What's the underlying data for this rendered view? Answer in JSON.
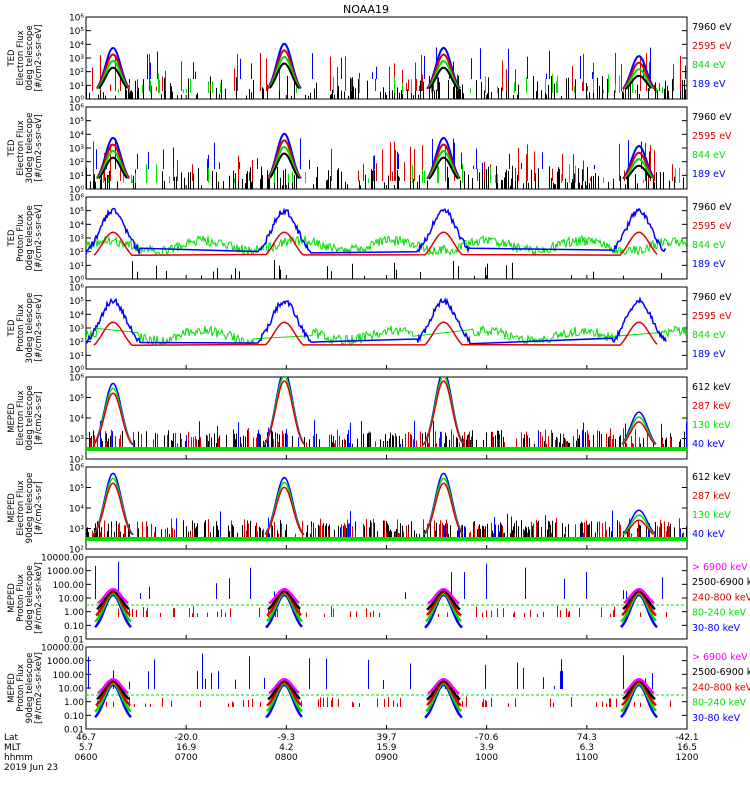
{
  "title": "NOAA19",
  "colors": {
    "black": "#000000",
    "red": "#e00000",
    "green": "#00e000",
    "blue": "#0000ff",
    "magenta": "#ff00ff"
  },
  "panels": [
    {
      "ylabel": [
        "TED",
        "Electron Flux",
        "0deg telescope",
        "[#/cm2-s-sr-eV]"
      ],
      "ticks": [
        "10⁰",
        "10¹",
        "10²",
        "10³",
        "10⁴",
        "10⁵",
        "10⁶"
      ],
      "legend": [
        {
          "text": "7960 eV",
          "color": "black"
        },
        {
          "text": "2595 eV",
          "color": "red"
        },
        {
          "text": "844 eV",
          "color": "green"
        },
        {
          "text": "189 eV",
          "color": "blue"
        }
      ]
    },
    {
      "ylabel": [
        "TED",
        "Electron Flux",
        "30deg telescope",
        "[#/cm2-s-sr-eV]"
      ],
      "ticks": [
        "10⁰",
        "10¹",
        "10²",
        "10³",
        "10⁴",
        "10⁵",
        "10⁶"
      ],
      "legend": [
        {
          "text": "7960 eV",
          "color": "black"
        },
        {
          "text": "2595 eV",
          "color": "red"
        },
        {
          "text": "844 eV",
          "color": "green"
        },
        {
          "text": "189 eV",
          "color": "blue"
        }
      ]
    },
    {
      "ylabel": [
        "TED",
        "Proton Flux",
        "0deg telescope",
        "[#/cm2-s-sr-eV]"
      ],
      "ticks": [
        "10⁰",
        "10¹",
        "10²",
        "10³",
        "10⁴",
        "10⁵",
        "10⁶"
      ],
      "legend": [
        {
          "text": "7960 eV",
          "color": "black"
        },
        {
          "text": "2595 eV",
          "color": "red"
        },
        {
          "text": "844 eV",
          "color": "green"
        },
        {
          "text": "189 eV",
          "color": "blue"
        }
      ]
    },
    {
      "ylabel": [
        "TED",
        "Proton Flux",
        "30deg telescope",
        "[#/cm2-s-sr-eV]"
      ],
      "ticks": [
        "10⁰",
        "10¹",
        "10²",
        "10³",
        "10⁴",
        "10⁵",
        "10⁶"
      ],
      "legend": [
        {
          "text": "7960 eV",
          "color": "black"
        },
        {
          "text": "2595 eV",
          "color": "red"
        },
        {
          "text": "844 eV",
          "color": "green"
        },
        {
          "text": "189 eV",
          "color": "blue"
        }
      ]
    },
    {
      "ylabel": [
        "MEPED",
        "Electron Flux",
        "0deg telescope",
        "[#/cm2-s-sr]"
      ],
      "ticks": [
        "10²",
        "10³",
        "10⁴",
        "10⁵",
        "10⁶"
      ],
      "legend": [
        {
          "text": "612 keV",
          "color": "black"
        },
        {
          "text": "287 keV",
          "color": "red"
        },
        {
          "text": "130 keV",
          "color": "green"
        },
        {
          "text": "40 keV",
          "color": "blue"
        }
      ]
    },
    {
      "ylabel": [
        "MEPED",
        "Electron Flux",
        "90deg telescope",
        "[#/cm2-s-sr]"
      ],
      "ticks": [
        "10²",
        "10³",
        "10⁴",
        "10⁵",
        "10⁶"
      ],
      "legend": [
        {
          "text": "612 keV",
          "color": "black"
        },
        {
          "text": "287 keV",
          "color": "red"
        },
        {
          "text": "130 keV",
          "color": "green"
        },
        {
          "text": "40 keV",
          "color": "blue"
        }
      ]
    },
    {
      "ylabel": [
        "MEPED",
        "Proton Flux",
        "0deg telescope",
        "[#/cm2-s-sr-keV]"
      ],
      "ticks": [
        "0.01",
        "0.10",
        "1.00",
        "10.00",
        "100.00",
        "1000.00",
        "10000.00"
      ],
      "legend": [
        {
          "text": "> 6900 keV",
          "color": "magenta"
        },
        {
          "text": "2500-6900 keV",
          "color": "black"
        },
        {
          "text": "240-800 keV",
          "color": "red"
        },
        {
          "text": "80-240 keV",
          "color": "green"
        },
        {
          "text": "30-80 keV",
          "color": "blue"
        }
      ]
    },
    {
      "ylabel": [
        "MEPED",
        "Proton Flux",
        "90deg telescope",
        "[#/cm2-s-sr-keV]"
      ],
      "ticks": [
        "0.01",
        "0.10",
        "1.00",
        "10.00",
        "100.00",
        "1000.00",
        "10000.00"
      ],
      "legend": [
        {
          "text": "> 6900 keV",
          "color": "magenta"
        },
        {
          "text": "2500-6900 keV",
          "color": "black"
        },
        {
          "text": "240-800 keV",
          "color": "red"
        },
        {
          "text": "80-240 keV",
          "color": "green"
        },
        {
          "text": "30-80 keV",
          "color": "blue"
        }
      ]
    }
  ],
  "xaxis": {
    "row_labels": [
      "Lat",
      "MLT",
      "hhmm"
    ],
    "date": "2019 Jun 23",
    "ticks": [
      {
        "lat": "46.7",
        "mlt": "5.7",
        "hhmm": "0600"
      },
      {
        "lat": "-20.0",
        "mlt": "16.9",
        "hhmm": "0700"
      },
      {
        "lat": "-9.3",
        "mlt": "4.2",
        "hhmm": "0800"
      },
      {
        "lat": "39.7",
        "mlt": "15.9",
        "hhmm": "0900"
      },
      {
        "lat": "-70.6",
        "mlt": "3.9",
        "hhmm": "1000"
      },
      {
        "lat": "74.3",
        "mlt": "6.3",
        "hhmm": "1100"
      },
      {
        "lat": "-42.1",
        "mlt": "16.5",
        "hhmm": "1200"
      }
    ]
  },
  "chart_data": {
    "type": "line",
    "title": "NOAA19",
    "x": [
      "0600",
      "0700",
      "0800",
      "0900",
      "1000",
      "1100",
      "1200"
    ],
    "xlabel": "hhmm",
    "log_scale": true,
    "panels": [
      {
        "ylabel": "TED Electron Flux 0deg telescope [#/cm2-s-sr-eV]",
        "ylim": [
          1,
          1000000
        ],
        "series": [
          {
            "name": "7960 eV",
            "color": "black"
          },
          {
            "name": "2595 eV",
            "color": "red"
          },
          {
            "name": "844 eV",
            "color": "green"
          },
          {
            "name": "189 eV",
            "color": "blue"
          }
        ]
      },
      {
        "ylabel": "TED Electron Flux 30deg telescope [#/cm2-s-sr-eV]",
        "ylim": [
          1,
          1000000
        ],
        "series": [
          {
            "name": "7960 eV",
            "color": "black"
          },
          {
            "name": "2595 eV",
            "color": "red"
          },
          {
            "name": "844 eV",
            "color": "green"
          },
          {
            "name": "189 eV",
            "color": "blue"
          }
        ]
      },
      {
        "ylabel": "TED Proton Flux 0deg telescope [#/cm2-s-sr-eV]",
        "ylim": [
          1,
          1000000
        ],
        "series": [
          {
            "name": "7960 eV",
            "color": "black"
          },
          {
            "name": "2595 eV",
            "color": "red"
          },
          {
            "name": "844 eV",
            "color": "green"
          },
          {
            "name": "189 eV",
            "color": "blue"
          }
        ]
      },
      {
        "ylabel": "TED Proton Flux 30deg telescope [#/cm2-s-sr-eV]",
        "ylim": [
          1,
          1000000
        ],
        "series": [
          {
            "name": "7960 eV",
            "color": "black"
          },
          {
            "name": "2595 eV",
            "color": "red"
          },
          {
            "name": "844 eV",
            "color": "green"
          },
          {
            "name": "189 eV",
            "color": "blue"
          }
        ]
      },
      {
        "ylabel": "MEPED Electron Flux 0deg telescope [#/cm2-s-sr]",
        "ylim": [
          100,
          1000000
        ],
        "series": [
          {
            "name": "612 keV",
            "color": "black"
          },
          {
            "name": "287 keV",
            "color": "red"
          },
          {
            "name": "130 keV",
            "color": "green"
          },
          {
            "name": "40 keV",
            "color": "blue"
          }
        ]
      },
      {
        "ylabel": "MEPED Electron Flux 90deg telescope [#/cm2-s-sr]",
        "ylim": [
          100,
          1000000
        ],
        "series": [
          {
            "name": "612 keV",
            "color": "black"
          },
          {
            "name": "287 keV",
            "color": "red"
          },
          {
            "name": "130 keV",
            "color": "green"
          },
          {
            "name": "40 keV",
            "color": "blue"
          }
        ]
      },
      {
        "ylabel": "MEPED Proton Flux 0deg telescope [#/cm2-s-sr-keV]",
        "ylim": [
          0.01,
          10000
        ],
        "series": [
          {
            "name": "> 6900 keV",
            "color": "magenta"
          },
          {
            "name": "2500-6900 keV",
            "color": "black"
          },
          {
            "name": "240-800 keV",
            "color": "red"
          },
          {
            "name": "80-240 keV",
            "color": "green"
          },
          {
            "name": "30-80 keV",
            "color": "blue"
          }
        ]
      },
      {
        "ylabel": "MEPED Proton Flux 90deg telescope [#/cm2-s-sr-keV]",
        "ylim": [
          0.01,
          10000
        ],
        "series": [
          {
            "name": "> 6900 keV",
            "color": "magenta"
          },
          {
            "name": "2500-6900 keV",
            "color": "black"
          },
          {
            "name": "240-800 keV",
            "color": "red"
          },
          {
            "name": "80-240 keV",
            "color": "green"
          },
          {
            "name": "30-80 keV",
            "color": "blue"
          }
        ]
      }
    ]
  }
}
